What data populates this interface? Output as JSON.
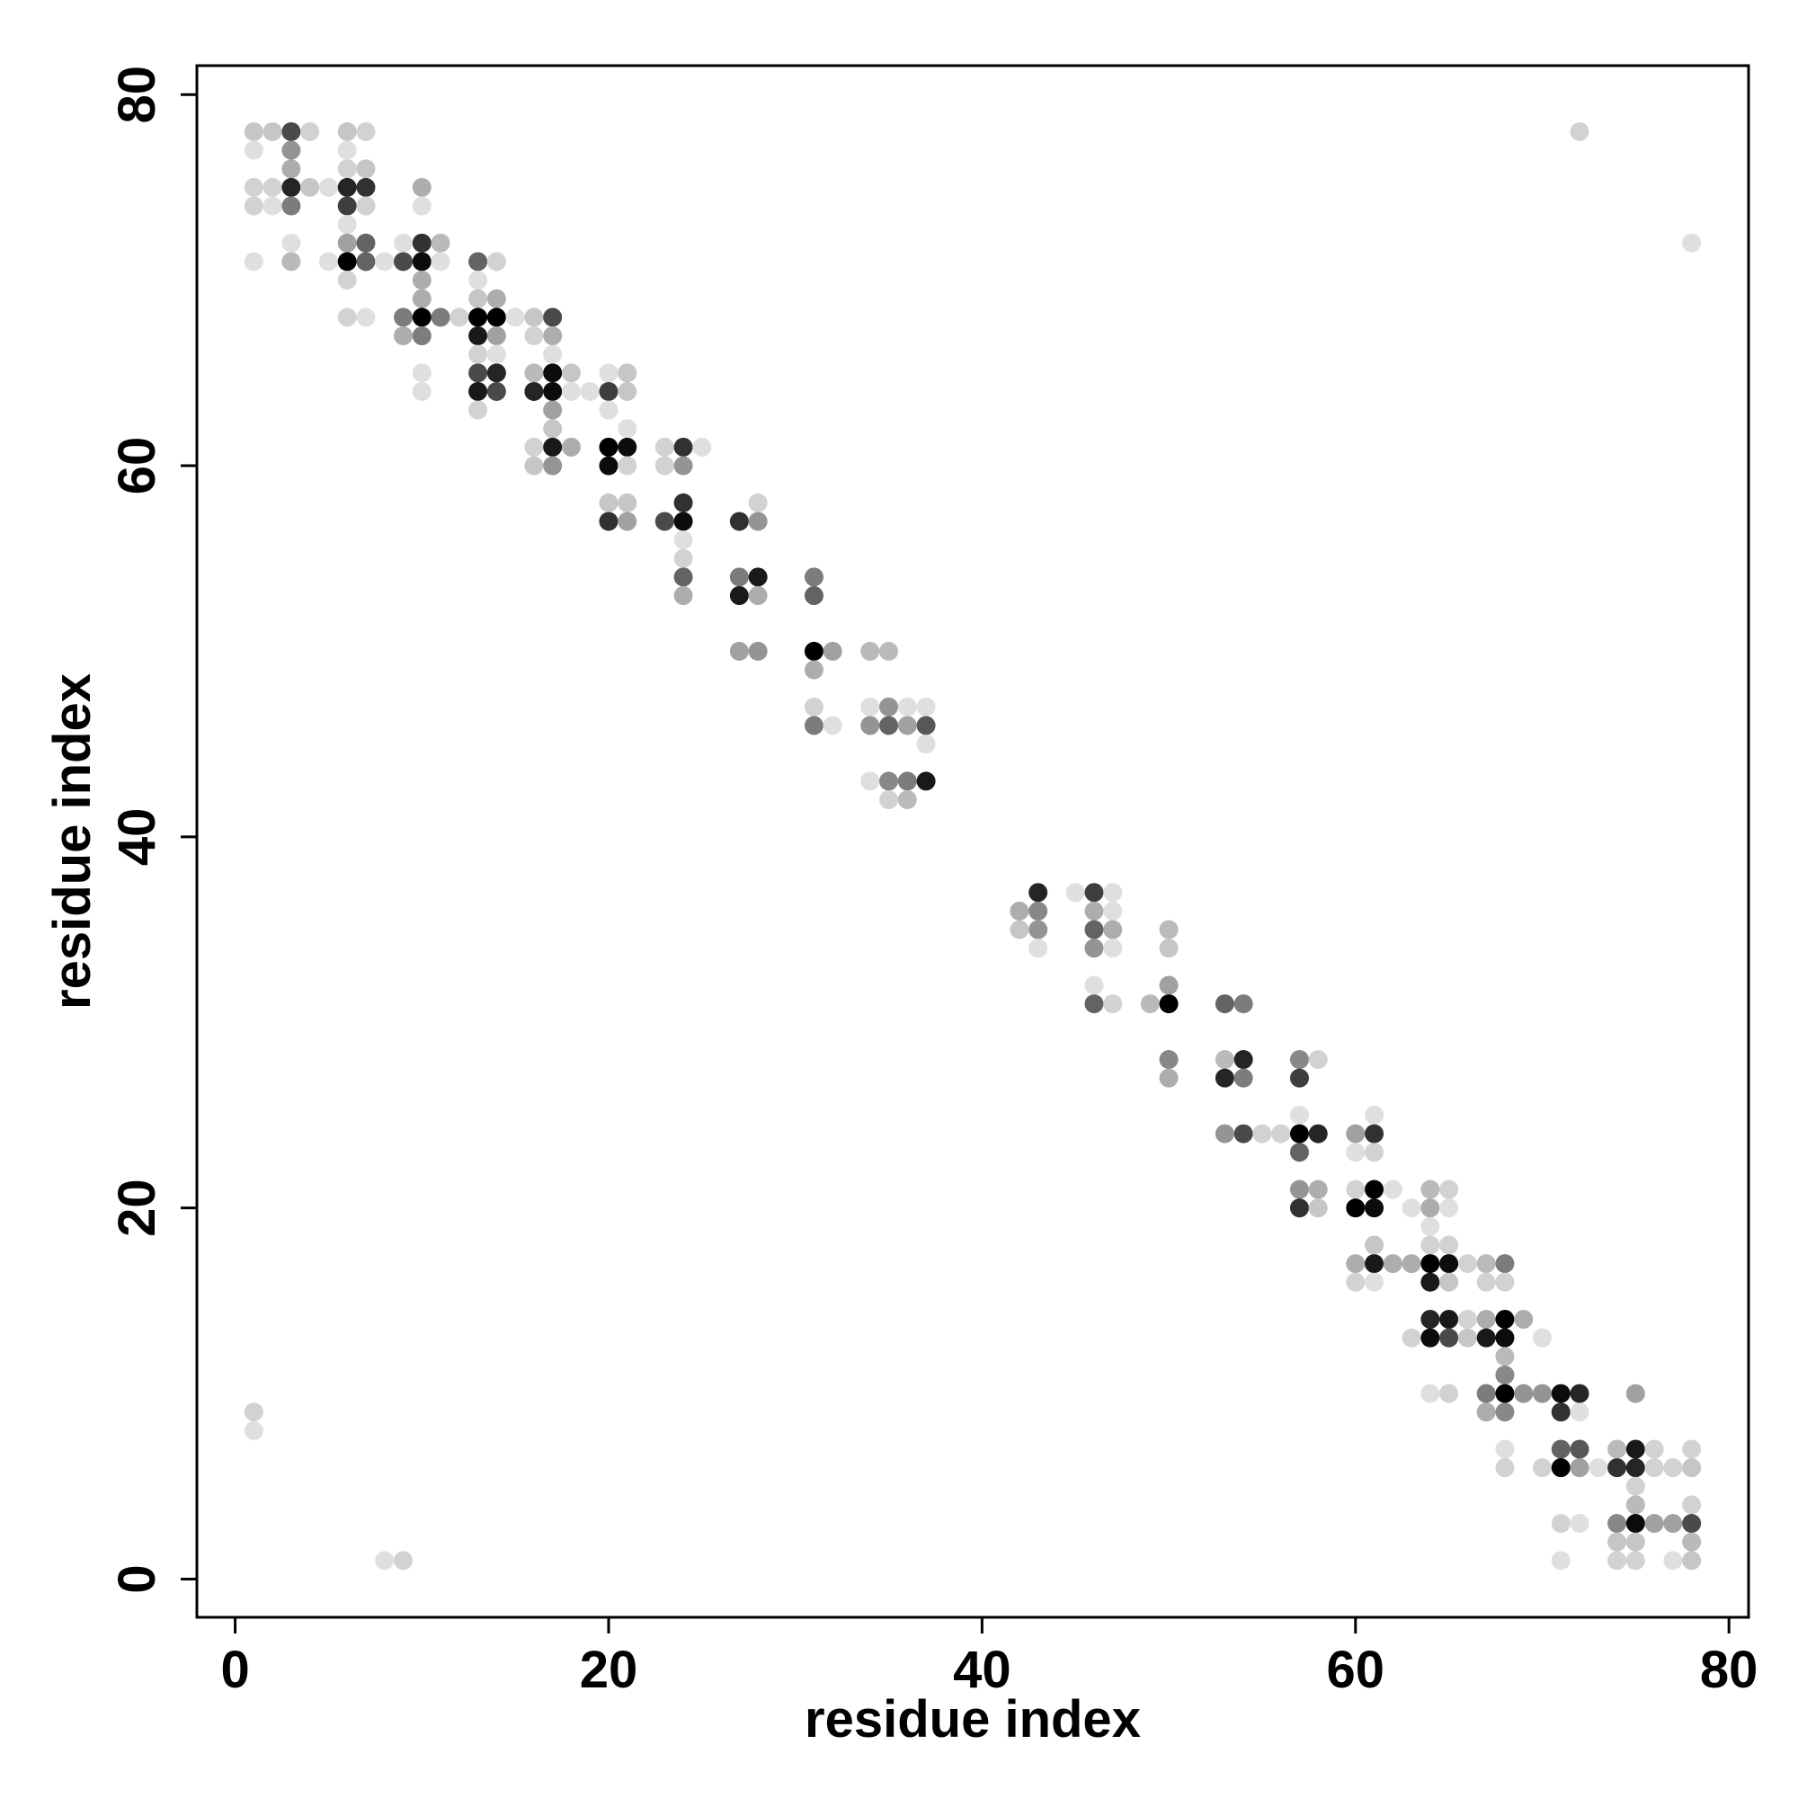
{
  "chart_data": {
    "type": "scatter",
    "xlabel": "residue index",
    "ylabel": "residue index",
    "xlim": [
      -2.05,
      81.05
    ],
    "ylim": [
      -2.06,
      81.56
    ],
    "xticks": [
      0,
      20,
      40,
      60,
      80
    ],
    "yticks": [
      0,
      20,
      40,
      60,
      80
    ],
    "color": "#000000",
    "x": [
      1,
      2,
      3,
      4,
      6,
      7,
      72,
      1,
      3,
      6,
      3,
      6,
      7,
      1,
      2,
      3,
      4,
      5,
      6,
      7,
      10,
      1,
      2,
      3,
      6,
      7,
      10,
      6,
      3,
      6,
      7,
      9,
      10,
      11,
      78,
      1,
      3,
      5,
      6,
      7,
      8,
      9,
      10,
      11,
      13,
      14,
      6,
      10,
      13,
      10,
      13,
      14,
      6,
      7,
      9,
      10,
      11,
      12,
      13,
      14,
      15,
      16,
      17,
      9,
      10,
      13,
      14,
      16,
      17,
      13,
      14,
      17,
      10,
      13,
      14,
      16,
      17,
      18,
      20,
      21,
      10,
      13,
      14,
      16,
      17,
      18,
      19,
      20,
      21,
      13,
      17,
      20,
      17,
      21,
      16,
      17,
      18,
      20,
      21,
      23,
      24,
      25,
      16,
      17,
      20,
      21,
      23,
      24,
      20,
      21,
      24,
      28,
      20,
      21,
      23,
      24,
      27,
      28,
      24,
      24,
      24,
      27,
      28,
      31,
      24,
      27,
      28,
      31,
      27,
      28,
      31,
      32,
      34,
      35,
      31,
      31,
      34,
      35,
      36,
      37,
      31,
      32,
      34,
      35,
      36,
      37,
      37,
      34,
      35,
      36,
      37,
      35,
      36,
      43,
      45,
      46,
      47,
      42,
      43,
      46,
      47,
      42,
      43,
      46,
      47,
      50,
      43,
      46,
      47,
      50,
      46,
      50,
      46,
      47,
      49,
      50,
      53,
      54,
      50,
      53,
      54,
      57,
      58,
      50,
      53,
      54,
      57,
      57,
      61,
      53,
      54,
      55,
      56,
      57,
      58,
      60,
      61,
      57,
      60,
      61,
      57,
      58,
      60,
      61,
      62,
      64,
      65,
      57,
      58,
      60,
      61,
      63,
      64,
      65,
      64,
      61,
      64,
      65,
      60,
      61,
      62,
      63,
      64,
      65,
      66,
      67,
      68,
      60,
      61,
      64,
      65,
      67,
      68,
      64,
      65,
      66,
      67,
      68,
      69,
      63,
      64,
      65,
      66,
      67,
      68,
      70,
      68,
      68,
      64,
      65,
      67,
      68,
      69,
      70,
      71,
      72,
      75,
      1,
      67,
      68,
      71,
      72,
      1,
      68,
      71,
      72,
      74,
      75,
      76,
      78,
      68,
      70,
      71,
      72,
      73,
      74,
      75,
      76,
      77,
      78,
      75,
      75,
      78,
      71,
      72,
      74,
      75,
      76,
      77,
      78,
      74,
      75,
      78,
      8,
      9,
      71,
      74,
      75,
      77,
      78
    ],
    "values": [
      78,
      78,
      78,
      78,
      78,
      78,
      78,
      77,
      77,
      77,
      76,
      76,
      76,
      75,
      75,
      75,
      75,
      75,
      75,
      75,
      75,
      74,
      74,
      74,
      74,
      74,
      74,
      73,
      72,
      72,
      72,
      72,
      72,
      72,
      72,
      71,
      71,
      71,
      71,
      71,
      71,
      71,
      71,
      71,
      71,
      71,
      70,
      70,
      70,
      69,
      69,
      69,
      68,
      68,
      68,
      68,
      68,
      68,
      68,
      68,
      68,
      68,
      68,
      67,
      67,
      67,
      67,
      67,
      67,
      66,
      66,
      66,
      65,
      65,
      65,
      65,
      65,
      65,
      65,
      65,
      64,
      64,
      64,
      64,
      64,
      64,
      64,
      64,
      64,
      63,
      63,
      63,
      62,
      62,
      61,
      61,
      61,
      61,
      61,
      61,
      61,
      61,
      60,
      60,
      60,
      60,
      60,
      60,
      58,
      58,
      58,
      58,
      57,
      57,
      57,
      57,
      57,
      57,
      56,
      55,
      54,
      54,
      54,
      54,
      53,
      53,
      53,
      53,
      50,
      50,
      50,
      50,
      50,
      50,
      49,
      47,
      47,
      47,
      47,
      47,
      46,
      46,
      46,
      46,
      46,
      46,
      45,
      43,
      43,
      43,
      43,
      42,
      42,
      37,
      37,
      37,
      37,
      36,
      36,
      36,
      36,
      35,
      35,
      35,
      35,
      35,
      34,
      34,
      34,
      34,
      32,
      32,
      31,
      31,
      31,
      31,
      31,
      31,
      28,
      28,
      28,
      28,
      28,
      27,
      27,
      27,
      27,
      25,
      25,
      24,
      24,
      24,
      24,
      24,
      24,
      24,
      24,
      23,
      23,
      23,
      21,
      21,
      21,
      21,
      21,
      21,
      21,
      20,
      20,
      20,
      20,
      20,
      20,
      20,
      19,
      18,
      18,
      18,
      17,
      17,
      17,
      17,
      17,
      17,
      17,
      17,
      17,
      16,
      16,
      16,
      16,
      16,
      16,
      14,
      14,
      14,
      14,
      14,
      14,
      13,
      13,
      13,
      13,
      13,
      13,
      13,
      12,
      11,
      10,
      10,
      10,
      10,
      10,
      10,
      10,
      10,
      10,
      9,
      9,
      9,
      9,
      9,
      8,
      7,
      7,
      7,
      7,
      7,
      7,
      7,
      6,
      6,
      6,
      6,
      6,
      6,
      6,
      6,
      6,
      6,
      5,
      4,
      4,
      3,
      3,
      3,
      3,
      3,
      3,
      3,
      2,
      2,
      2,
      1,
      1,
      1,
      1,
      1,
      1,
      1
    ],
    "shade": [
      0.2,
      0.2,
      0.7,
      0.15,
      0.2,
      0.15,
      0.15,
      0.1,
      0.4,
      0.1,
      0.3,
      0.15,
      0.2,
      0.15,
      0.15,
      0.85,
      0.2,
      0.1,
      0.85,
      0.8,
      0.3,
      0.15,
      0.1,
      0.5,
      0.75,
      0.15,
      0.1,
      0.1,
      0.1,
      0.35,
      0.6,
      0.1,
      0.8,
      0.25,
      0.1,
      0.1,
      0.25,
      0.1,
      1,
      0.6,
      0.1,
      0.7,
      0.95,
      0.1,
      0.6,
      0.15,
      0.15,
      0.3,
      0.1,
      0.3,
      0.2,
      0.3,
      0.15,
      0.1,
      0.5,
      1,
      0.5,
      0.15,
      1,
      1,
      0.1,
      0.2,
      0.7,
      0.3,
      0.5,
      0.9,
      0.35,
      0.15,
      0.3,
      0.15,
      0.1,
      0.1,
      0.1,
      0.7,
      0.85,
      0.25,
      0.95,
      0.2,
      0.1,
      0.2,
      0.1,
      0.9,
      0.7,
      0.85,
      0.95,
      0.1,
      0.1,
      0.75,
      0.2,
      0.15,
      0.35,
      0.1,
      0.2,
      0.1,
      0.15,
      0.9,
      0.3,
      1,
      0.95,
      0.15,
      0.8,
      0.1,
      0.2,
      0.4,
      0.95,
      0.15,
      0.15,
      0.4,
      0.2,
      0.2,
      0.8,
      0.15,
      0.8,
      0.35,
      0.7,
      0.95,
      0.8,
      0.4,
      0.1,
      0.15,
      0.6,
      0.5,
      0.9,
      0.5,
      0.3,
      0.9,
      0.3,
      0.6,
      0.35,
      0.4,
      1,
      0.35,
      0.25,
      0.25,
      0.3,
      0.15,
      0.1,
      0.4,
      0.1,
      0.1,
      0.5,
      0.1,
      0.4,
      0.6,
      0.35,
      0.65,
      0.1,
      0.1,
      0.45,
      0.5,
      0.9,
      0.15,
      0.25,
      0.85,
      0.1,
      0.75,
      0.1,
      0.3,
      0.45,
      0.3,
      0.1,
      0.2,
      0.4,
      0.6,
      0.3,
      0.25,
      0.1,
      0.4,
      0.1,
      0.2,
      0.1,
      0.35,
      0.6,
      0.15,
      0.25,
      1,
      0.6,
      0.5,
      0.45,
      0.25,
      0.85,
      0.45,
      0.15,
      0.3,
      0.85,
      0.5,
      0.75,
      0.1,
      0.1,
      0.4,
      0.7,
      0.15,
      0.15,
      1,
      0.85,
      0.35,
      0.8,
      0.6,
      0.1,
      0.15,
      0.4,
      0.3,
      0.15,
      1,
      0.1,
      0.25,
      0.15,
      0.8,
      0.2,
      1,
      0.95,
      0.1,
      0.3,
      0.1,
      0.1,
      0.2,
      0.15,
      0.15,
      0.3,
      0.9,
      0.3,
      0.3,
      1,
      0.95,
      0.15,
      0.25,
      0.5,
      0.15,
      0.1,
      0.9,
      0.2,
      0.15,
      0.15,
      0.85,
      0.9,
      0.15,
      0.3,
      1,
      0.3,
      0.15,
      0.95,
      0.7,
      0.2,
      0.9,
      0.95,
      0.1,
      0.25,
      0.45,
      0.1,
      0.15,
      0.5,
      1,
      0.4,
      0.4,
      0.95,
      0.85,
      0.35,
      0.15,
      0.3,
      0.45,
      0.8,
      0.1,
      0.1,
      0.1,
      0.6,
      0.65,
      0.25,
      0.9,
      0.15,
      0.15,
      0.15,
      0.15,
      1,
      0.35,
      0.1,
      0.8,
      0.85,
      0.15,
      0.15,
      0.2,
      0.15,
      0.25,
      0.15,
      0.15,
      0.1,
      0.45,
      0.95,
      0.35,
      0.35,
      0.7,
      0.2,
      0.2,
      0.25,
      0.1,
      0.15,
      0.1,
      0.15,
      0.15,
      0.1,
      0.2
    ]
  }
}
